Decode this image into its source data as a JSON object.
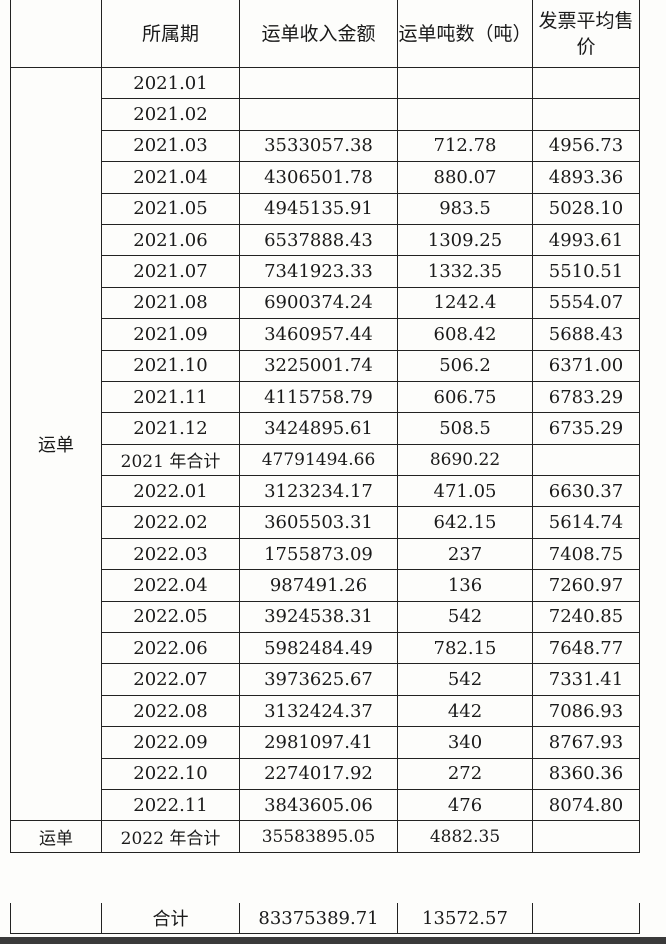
{
  "table": {
    "headers": {
      "period": "所属期",
      "amount": "运单收入金额",
      "tonnage": "运单吨数（吨）",
      "avg_price": "发票平均售价"
    },
    "section_label": "运单",
    "rows_2021": [
      {
        "period": "2021.01",
        "amount": "",
        "tonnage": "",
        "avg_price": ""
      },
      {
        "period": "2021.02",
        "amount": "",
        "tonnage": "",
        "avg_price": ""
      },
      {
        "period": "2021.03",
        "amount": "3533057.38",
        "tonnage": "712.78",
        "avg_price": "4956.73"
      },
      {
        "period": "2021.04",
        "amount": "4306501.78",
        "tonnage": "880.07",
        "avg_price": "4893.36"
      },
      {
        "period": "2021.05",
        "amount": "4945135.91",
        "tonnage": "983.5",
        "avg_price": "5028.10"
      },
      {
        "period": "2021.06",
        "amount": "6537888.43",
        "tonnage": "1309.25",
        "avg_price": "4993.61"
      },
      {
        "period": "2021.07",
        "amount": "7341923.33",
        "tonnage": "1332.35",
        "avg_price": "5510.51"
      },
      {
        "period": "2021.08",
        "amount": "6900374.24",
        "tonnage": "1242.4",
        "avg_price": "5554.07"
      },
      {
        "period": "2021.09",
        "amount": "3460957.44",
        "tonnage": "608.42",
        "avg_price": "5688.43"
      },
      {
        "period": "2021.10",
        "amount": "3225001.74",
        "tonnage": "506.2",
        "avg_price": "6371.00"
      },
      {
        "period": "2021.11",
        "amount": "4115758.79",
        "tonnage": "606.75",
        "avg_price": "6783.29"
      },
      {
        "period": "2021.12",
        "amount": "3424895.61",
        "tonnage": "508.5",
        "avg_price": "6735.29"
      }
    ],
    "subtotal_2021": {
      "period": "2021 年合计",
      "amount": "47791494.66",
      "tonnage": "8690.22",
      "avg_price": ""
    },
    "rows_2022": [
      {
        "period": "2022.01",
        "amount": "3123234.17",
        "tonnage": "471.05",
        "avg_price": "6630.37"
      },
      {
        "period": "2022.02",
        "amount": "3605503.31",
        "tonnage": "642.15",
        "avg_price": "5614.74"
      },
      {
        "period": "2022.03",
        "amount": "1755873.09",
        "tonnage": "237",
        "avg_price": "7408.75"
      },
      {
        "period": "2022.04",
        "amount": "987491.26",
        "tonnage": "136",
        "avg_price": "7260.97"
      },
      {
        "period": "2022.05",
        "amount": "3924538.31",
        "tonnage": "542",
        "avg_price": "7240.85"
      },
      {
        "period": "2022.06",
        "amount": "5982484.49",
        "tonnage": "782.15",
        "avg_price": "7648.77"
      },
      {
        "period": "2022.07",
        "amount": "3973625.67",
        "tonnage": "542",
        "avg_price": "7331.41"
      },
      {
        "period": "2022.08",
        "amount": "3132424.37",
        "tonnage": "442",
        "avg_price": "7086.93"
      },
      {
        "period": "2022.09",
        "amount": "2981097.41",
        "tonnage": "340",
        "avg_price": "8767.93"
      },
      {
        "period": "2022.10",
        "amount": "2274017.92",
        "tonnage": "272",
        "avg_price": "8360.36"
      },
      {
        "period": "2022.11",
        "amount": "3843605.06",
        "tonnage": "476",
        "avg_price": "8074.80"
      }
    ],
    "subtotal_2022": {
      "section_label": "运单",
      "period": "2022 年合计",
      "amount": "35583895.05",
      "tonnage": "4882.35",
      "avg_price": ""
    },
    "grand_total": {
      "period": "合计",
      "amount": "83375389.71",
      "tonnage": "13572.57",
      "avg_price": ""
    }
  }
}
